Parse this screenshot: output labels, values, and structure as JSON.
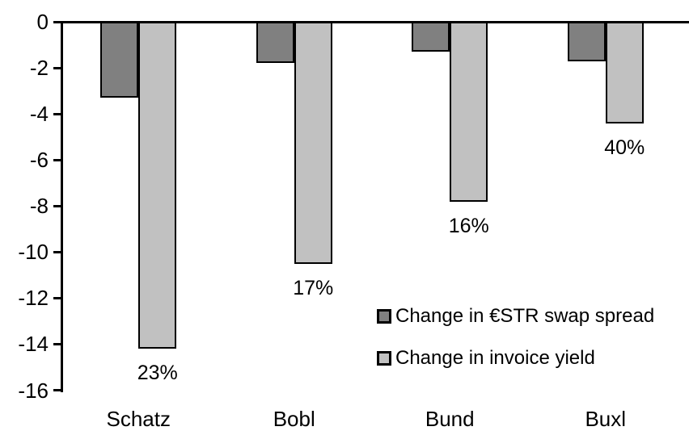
{
  "chart_data": {
    "type": "bar",
    "title": "",
    "xlabel": "",
    "ylabel": "",
    "categories": [
      "Schatz",
      "Bobl",
      "Bund",
      "Buxl"
    ],
    "series": [
      {
        "name": "Change in €STR swap spread",
        "color": "#808080",
        "values": [
          -3.3,
          -1.8,
          -1.3,
          -1.7
        ]
      },
      {
        "name": "Change in invoice yield",
        "color": "#c1c1c1",
        "values": [
          -14.2,
          -10.5,
          -7.8,
          -4.4
        ]
      }
    ],
    "bar_labels": {
      "series": "Change in invoice yield",
      "values": [
        "23%",
        "17%",
        "16%",
        "40%"
      ]
    },
    "ylim": [
      -16,
      0
    ],
    "yticks": [
      0,
      -2,
      -4,
      -6,
      -8,
      -10,
      -12,
      -14,
      -16
    ],
    "grid": false,
    "legend_position": "center-right",
    "axis_color": "#000000",
    "bar_border_color": "#000000"
  }
}
